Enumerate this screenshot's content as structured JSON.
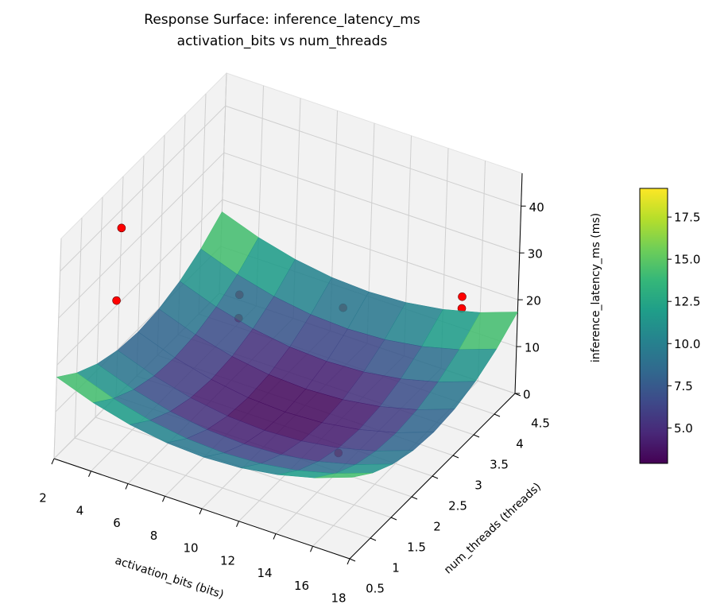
{
  "chart_data": {
    "type": "surface3d",
    "title": "Response Surface: inference_latency_ms",
    "subtitle": "activation_bits vs num_threads",
    "xlabel": "activation_bits (bits)",
    "ylabel": "num_threads (threads)",
    "zlabel": "inference_latency_ms (ms)",
    "xlim": [
      2,
      18
    ],
    "xticks": [
      2,
      4,
      6,
      8,
      10,
      12,
      14,
      16,
      18
    ],
    "ylim": [
      0.5,
      4.5
    ],
    "yticks": [
      0.5,
      1.0,
      1.5,
      2.0,
      2.5,
      3.0,
      3.5,
      4.0,
      4.5
    ],
    "zlim": [
      0,
      47
    ],
    "zticks": [
      0,
      10,
      20,
      30,
      40
    ],
    "grid": true,
    "colormap": "viridis",
    "surface": {
      "x": [
        2,
        4,
        6,
        8,
        10,
        12,
        14,
        16,
        18
      ],
      "y": [
        0.5,
        1.0,
        1.5,
        2.0,
        2.5,
        3.0,
        3.5,
        4.0,
        4.5
      ],
      "z": [
        [
          17.4,
          14.6,
          12.6,
          11.4,
          11.0,
          11.4,
          12.6,
          14.6,
          17.4
        ],
        [
          13.9,
          11.1,
          9.1,
          7.9,
          7.5,
          7.9,
          9.1,
          11.1,
          13.9
        ],
        [
          11.4,
          8.6,
          6.6,
          5.4,
          5.0,
          5.4,
          6.6,
          8.6,
          11.4
        ],
        [
          9.9,
          7.1,
          5.1,
          3.9,
          3.5,
          3.9,
          5.1,
          7.1,
          9.9
        ],
        [
          9.4,
          6.6,
          4.6,
          3.4,
          3.0,
          3.4,
          4.6,
          6.6,
          9.4
        ],
        [
          9.9,
          7.1,
          5.1,
          3.9,
          3.5,
          3.9,
          5.1,
          7.1,
          9.9
        ],
        [
          11.4,
          8.6,
          6.6,
          5.4,
          5.0,
          5.4,
          6.6,
          8.6,
          11.4
        ],
        [
          13.9,
          11.1,
          9.1,
          7.9,
          7.5,
          7.9,
          9.1,
          11.1,
          13.9
        ],
        [
          17.4,
          14.6,
          12.6,
          11.4,
          11.0,
          11.4,
          12.6,
          14.6,
          17.4
        ]
      ]
    },
    "points": {
      "color": "#ff0000",
      "x": [
        2,
        4,
        8,
        8,
        14,
        14,
        18,
        18
      ],
      "y": [
        2.0,
        1.0,
        2.2,
        2.2,
        2.0,
        2.0,
        3.1,
        3.1
      ],
      "z": [
        36,
        32,
        28,
        23,
        35,
        4,
        33,
        30.5
      ]
    },
    "colorbar": {
      "lim": [
        2.9,
        19.2
      ],
      "ticks": [
        {
          "value": 5,
          "label": "5.0"
        },
        {
          "value": 7.5,
          "label": "7.5"
        },
        {
          "value": 10,
          "label": "10.0"
        },
        {
          "value": 12.5,
          "label": "12.5"
        },
        {
          "value": 15,
          "label": "15.0"
        },
        {
          "value": 17.5,
          "label": "17.5"
        }
      ]
    }
  }
}
